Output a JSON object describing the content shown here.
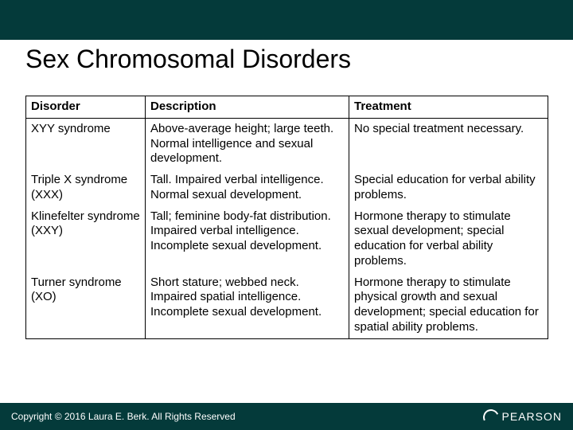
{
  "title": "Sex Chromosomal Disorders",
  "table": {
    "headers": {
      "disorder": "Disorder",
      "description": "Description",
      "treatment": "Treatment"
    },
    "rows": [
      {
        "disorder": "XYY syndrome",
        "description": "Above-average height; large teeth. Normal intelligence and sexual development.",
        "treatment": "No special treatment necessary."
      },
      {
        "disorder": "Triple X syndrome (XXX)",
        "description": "Tall. Impaired verbal intelligence. Normal sexual development.",
        "treatment": "Special education for verbal ability problems."
      },
      {
        "disorder": "Klinefelter syndrome (XXY)",
        "description": "Tall; feminine body-fat distribution. Impaired verbal intelligence. Incomplete sexual development.",
        "treatment": "Hormone therapy to stimulate sexual development; special education for verbal ability problems."
      },
      {
        "disorder": "Turner syndrome (XO)",
        "description": "Short stature; webbed neck. Impaired spatial intelligence. Incomplete sexual development.",
        "treatment": "Hormone therapy to stimulate physical growth and sexual development; special education for spatial ability problems."
      }
    ]
  },
  "footer": {
    "copyright": "Copyright © 2016 Laura E. Berk. All Rights Reserved",
    "logo_text": "PEARSON"
  },
  "colors": {
    "band": "#043a3a",
    "text": "#000000",
    "white": "#ffffff"
  }
}
